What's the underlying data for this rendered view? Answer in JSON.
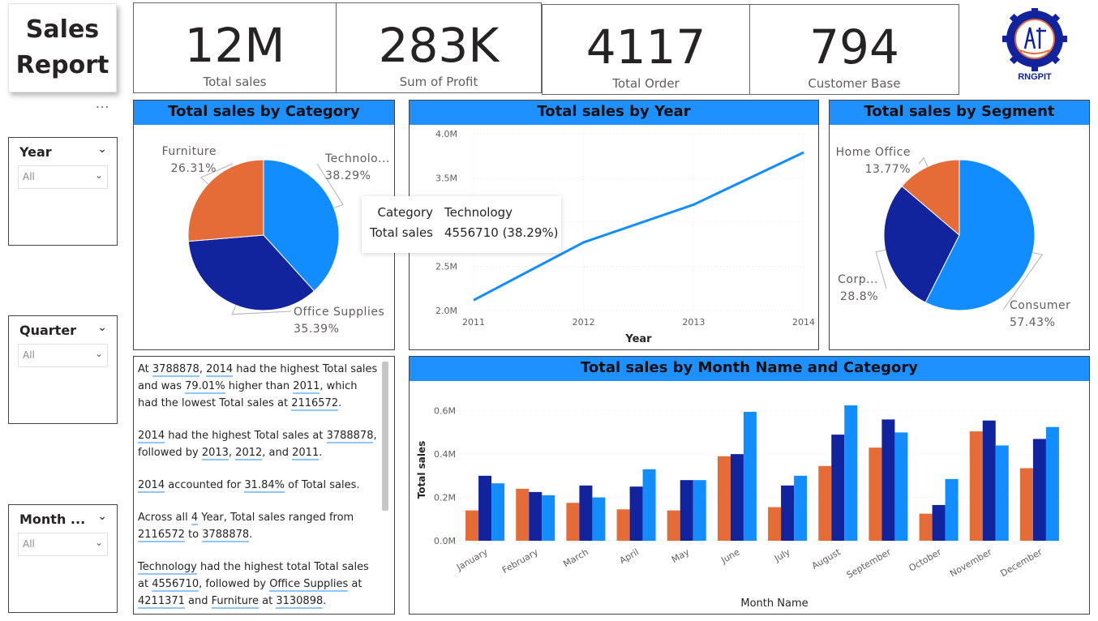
{
  "title": {
    "line1": "Sales",
    "line2": "Report"
  },
  "more_options": "...",
  "kpis": [
    {
      "value": "12M",
      "label": "Total sales"
    },
    {
      "value": "283K",
      "label": "Sum of Profit"
    },
    {
      "value": "4117",
      "label": "Total Order"
    },
    {
      "value": "794",
      "label": "Customer Base"
    }
  ],
  "logo": {
    "caption": "RNGPIT",
    "ring_text": "R.N.G. PATEL INSTITUTE OF TECHNOLOGY",
    "sub_text": "BARDOLI 2008"
  },
  "slicers": [
    {
      "title": "Year",
      "value": "All"
    },
    {
      "title": "Quarter",
      "value": "All"
    },
    {
      "title": "Month ...",
      "value": "All"
    }
  ],
  "colors": {
    "technology": "#118DFF",
    "office_supplies": "#12239E",
    "furniture": "#E66C37",
    "header": "#1E90FF",
    "line": "#118DFF"
  },
  "tooltip": {
    "k1": "Category",
    "v1": "Technology",
    "k2": "Total sales",
    "v2": "4556710 (38.29%)"
  },
  "narrative": {
    "p1": {
      "a": "At ",
      "v1": "3788878",
      "b": ", ",
      "v2": "2014",
      "c": " had the highest Total sales and was ",
      "v3": "79.01%",
      "d": " higher than ",
      "v4": "2011",
      "e": ", which had the lowest Total sales at ",
      "v5": "2116572",
      "f": "."
    },
    "p2": {
      "v1": "2014",
      "a": " had the highest Total sales at ",
      "v2": "3788878",
      "b": ", followed by ",
      "v3": "2013",
      "c": ", ",
      "v4": "2012",
      "d": ", and ",
      "v5": "2011",
      "e": "."
    },
    "p3": {
      "v1": "2014",
      "a": " accounted for ",
      "v2": "31.84%",
      "b": " of Total sales."
    },
    "p4": {
      "a": "Across all ",
      "v1": "4",
      "b": " Year, Total sales ranged from ",
      "v2": "2116572",
      "c": " to ",
      "v3": "3788878",
      "d": "."
    },
    "p5": {
      "v1": "Technology",
      "a": " had the highest total Total sales at ",
      "v2": "4556710",
      "b": ", followed by ",
      "v3": "Office Supplies",
      "c": " at ",
      "v4": "4211371",
      "d": " and ",
      "v5": "Furniture",
      "e": " at ",
      "v6": "3130898",
      "f": "."
    }
  },
  "chart_data": [
    {
      "type": "pie",
      "title": "Total sales by Category",
      "slices": [
        {
          "label": "Technolo...",
          "value": 38.29,
          "pct": "38.29%",
          "color": "#118DFF"
        },
        {
          "label": "Office Supplies",
          "value": 35.39,
          "pct": "35.39%",
          "color": "#12239E"
        },
        {
          "label": "Furniture",
          "value": 26.31,
          "pct": "26.31%",
          "color": "#E66C37"
        }
      ]
    },
    {
      "type": "line",
      "title": "Total sales by Year",
      "xlabel": "Year",
      "ylabel": "",
      "x": [
        2011,
        2012,
        2013,
        2014
      ],
      "y": [
        2116572,
        2771000,
        3198000,
        3788878
      ],
      "ylim": [
        2000000,
        4000000
      ],
      "yticks": [
        2000000,
        2500000,
        3000000,
        3500000,
        4000000
      ],
      "ytick_labels": [
        "2.0M",
        "2.5M",
        "3.0M",
        "3.5M",
        "4.0M"
      ],
      "grid": true
    },
    {
      "type": "pie",
      "title": "Total sales by Segment",
      "slices": [
        {
          "label": "Consumer",
          "value": 57.43,
          "pct": "57.43%",
          "color": "#118DFF"
        },
        {
          "label": "Corp...",
          "value": 28.8,
          "pct": "28.8%",
          "color": "#12239E"
        },
        {
          "label": "Home Office",
          "value": 13.77,
          "pct": "13.77%",
          "color": "#E66C37"
        }
      ]
    },
    {
      "type": "bar",
      "title": "Total sales by Month Name and Category",
      "xlabel": "Month Name",
      "ylabel": "Total sales",
      "categories": [
        "January",
        "February",
        "March",
        "April",
        "May",
        "June",
        "July",
        "August",
        "September",
        "October",
        "November",
        "December"
      ],
      "series": [
        {
          "color": "#E66C37",
          "values": [
            0.14,
            0.24,
            0.175,
            0.145,
            0.14,
            0.39,
            0.155,
            0.345,
            0.43,
            0.125,
            0.505,
            0.335
          ]
        },
        {
          "color": "#12239E",
          "values": [
            0.3,
            0.225,
            0.255,
            0.25,
            0.28,
            0.4,
            0.255,
            0.49,
            0.56,
            0.165,
            0.555,
            0.47
          ]
        },
        {
          "color": "#118DFF",
          "values": [
            0.265,
            0.21,
            0.2,
            0.33,
            0.28,
            0.595,
            0.3,
            0.625,
            0.5,
            0.285,
            0.44,
            0.525
          ]
        }
      ],
      "ylim": [
        0,
        0.7
      ],
      "yticks": [
        0,
        0.2,
        0.4,
        0.6
      ],
      "ytick_labels": [
        "0.0M",
        "0.2M",
        "0.4M",
        "0.6M"
      ],
      "grid": true
    }
  ]
}
